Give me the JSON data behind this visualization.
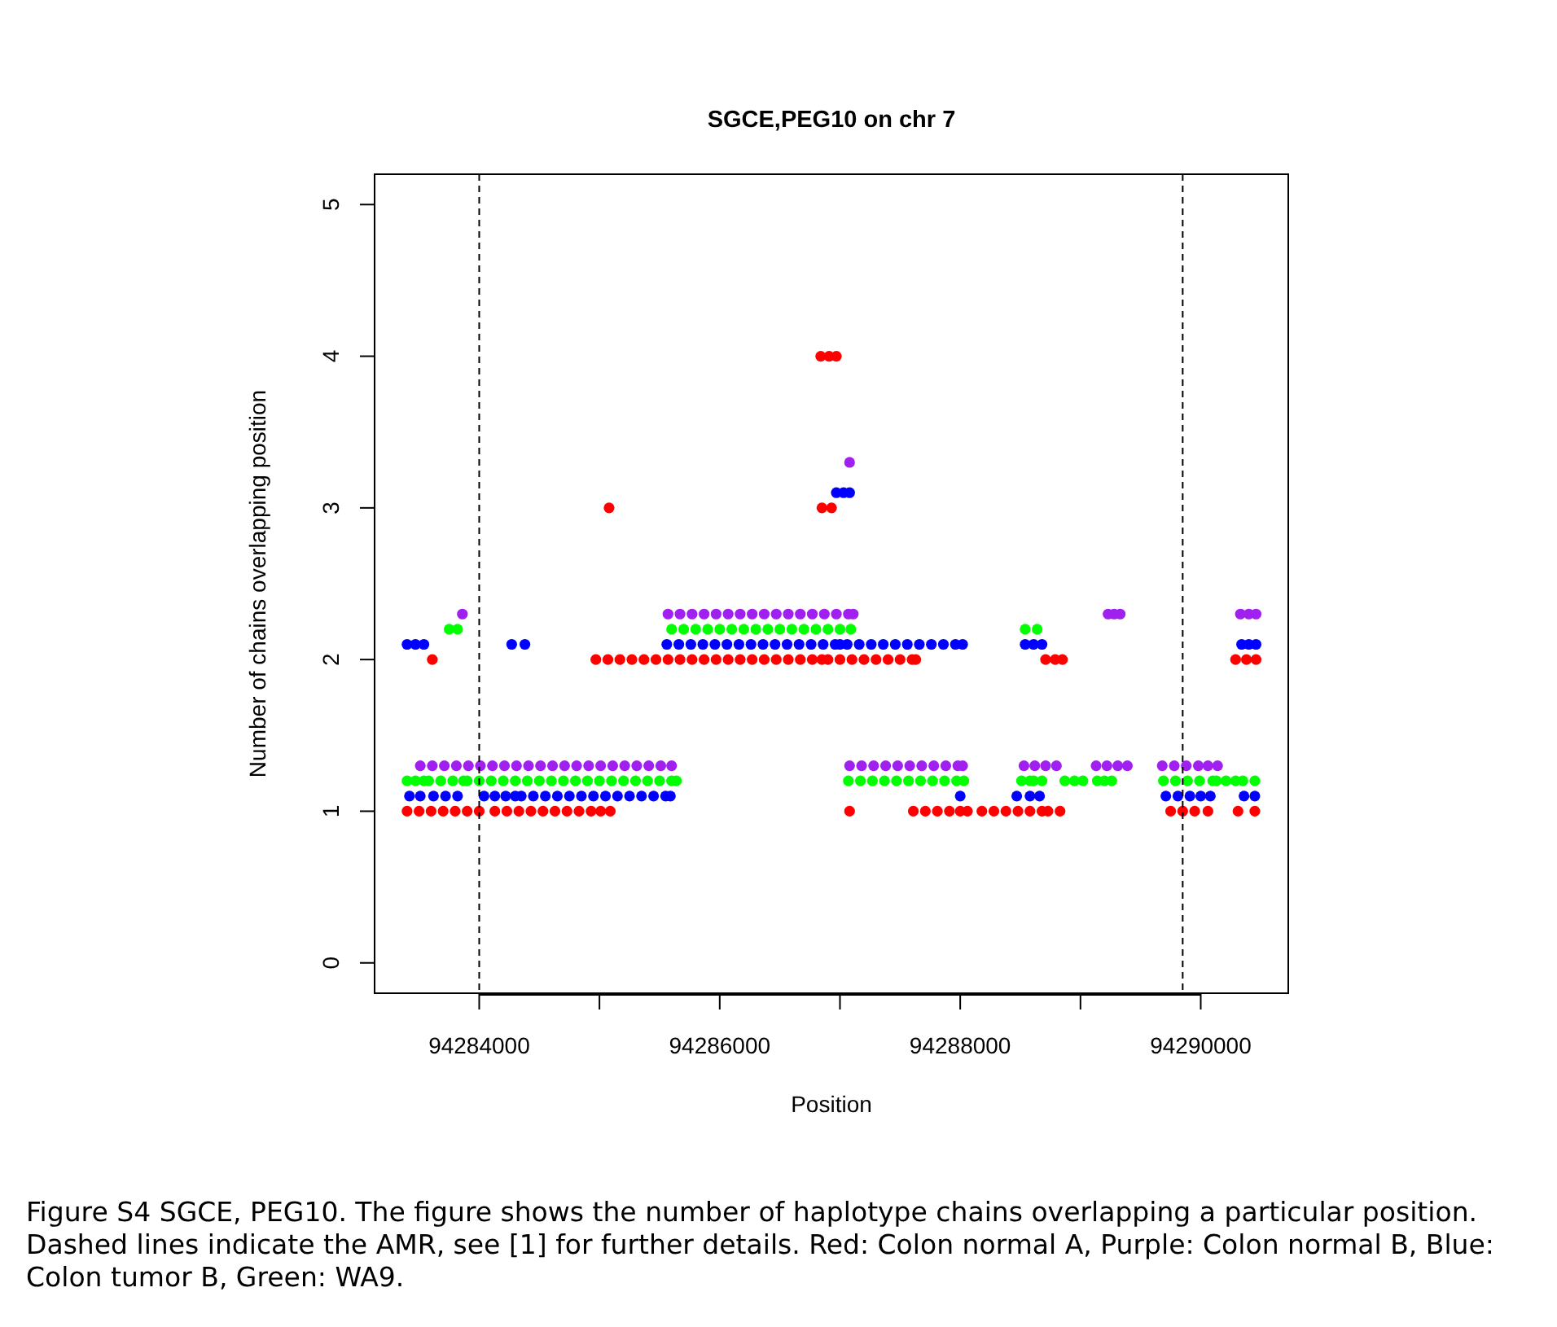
{
  "chart_data": {
    "type": "scatter",
    "title": "SGCE,PEG10 on chr 7",
    "xlabel": "Position",
    "ylabel": "Number of chains overlapping position",
    "xlim": [
      94283130,
      94290728
    ],
    "ylim": [
      -0.2,
      5.2
    ],
    "xticks": [
      94284000,
      {
        "value": 94285000,
        "label": null
      },
      94286000,
      {
        "value": 94287000,
        "label": null
      },
      94288000,
      {
        "value": 94289000,
        "label": null
      },
      94290000
    ],
    "yticks": [
      0,
      1,
      2,
      3,
      4,
      5
    ],
    "marker": "circle",
    "ref_lines": [
      {
        "axis": "x",
        "value": 94284000,
        "color": "#000000",
        "line_style": "dashed"
      },
      {
        "axis": "x",
        "value": 94289850,
        "color": "#000000",
        "line_style": "dashed"
      }
    ],
    "annotations": [
      "Figure S4 SGCE, PEG10. The figure shows the number of haplotype chains overlapping a particular position. Dashed lines indicate the AMR, see [1] for further details. Red: Colon normal A, Purple: Colon normal B, Blue: Colon tumor B, Green: WA9."
    ],
    "series": [
      {
        "color": "#ff0000",
        "x": [
          94283400,
          94283500,
          94283600,
          94283700,
          94283800,
          94283900,
          94284000,
          94284130,
          94284230,
          94284330,
          94284430,
          94284530,
          94284630,
          94284730,
          94284830,
          94284930,
          94285010,
          94285090,
          94287080,
          94287610,
          94287710,
          94287810,
          94287910,
          94288000,
          94288060,
          94288180,
          94288280,
          94288380,
          94288480,
          94288580,
          94288680,
          94288730,
          94288830,
          94289750,
          94289850,
          94289950,
          94290060,
          94290310,
          94290450,
          94283610,
          94284970,
          94285070,
          94285170,
          94285270,
          94285370,
          94285470,
          94285570,
          94285670,
          94285770,
          94285870,
          94285970,
          94286070,
          94286170,
          94286270,
          94286370,
          94286470,
          94286570,
          94286670,
          94286770,
          94286850,
          94286900,
          94287000,
          94287100,
          94287200,
          94287300,
          94287400,
          94287500,
          94287600,
          94287630,
          94288710,
          94288790,
          94288850,
          94290290,
          94290380,
          94290460,
          94285080,
          94286850,
          94286930,
          94286840,
          94286910,
          94286970
        ],
        "values": [
          1,
          1,
          1,
          1,
          1,
          1,
          1,
          1,
          1,
          1,
          1,
          1,
          1,
          1,
          1,
          1,
          1,
          1,
          1,
          1,
          1,
          1,
          1,
          1,
          1,
          1,
          1,
          1,
          1,
          1,
          1,
          1,
          1,
          1,
          1,
          1,
          1,
          1,
          1,
          2,
          2,
          2,
          2,
          2,
          2,
          2,
          2,
          2,
          2,
          2,
          2,
          2,
          2,
          2,
          2,
          2,
          2,
          2,
          2,
          2,
          2,
          2,
          2,
          2,
          2,
          2,
          2,
          2,
          2,
          2,
          2,
          2,
          2,
          2,
          2,
          3,
          3,
          3,
          4,
          4,
          4
        ]
      },
      {
        "color": "#0000ff",
        "x": [
          94283420,
          94283510,
          94283620,
          94283720,
          94283820,
          94284040,
          94284130,
          94284220,
          94284300,
          94284350,
          94284450,
          94284550,
          94284650,
          94284750,
          94284850,
          94284950,
          94285050,
          94285150,
          94285250,
          94285350,
          94285450,
          94285550,
          94285590,
          94288000,
          94288470,
          94288580,
          94288660,
          94289710,
          94289810,
          94289910,
          94290000,
          94290080,
          94290360,
          94290450,
          94283400,
          94283470,
          94283540,
          94284270,
          94284380,
          94285560,
          94285660,
          94285760,
          94285860,
          94285960,
          94286060,
          94286160,
          94286260,
          94286360,
          94286460,
          94286560,
          94286660,
          94286760,
          94286860,
          94286960,
          94287000,
          94287060,
          94287160,
          94287260,
          94287360,
          94287460,
          94287560,
          94287660,
          94287760,
          94287860,
          94287960,
          94288020,
          94288540,
          94288610,
          94288680,
          94290340,
          94290400,
          94290460,
          94286970,
          94287030,
          94287080
        ],
        "values": [
          1.1,
          1.1,
          1.1,
          1.1,
          1.1,
          1.1,
          1.1,
          1.1,
          1.1,
          1.1,
          1.1,
          1.1,
          1.1,
          1.1,
          1.1,
          1.1,
          1.1,
          1.1,
          1.1,
          1.1,
          1.1,
          1.1,
          1.1,
          1.1,
          1.1,
          1.1,
          1.1,
          1.1,
          1.1,
          1.1,
          1.1,
          1.1,
          1.1,
          1.1,
          2.1,
          2.1,
          2.1,
          2.1,
          2.1,
          2.1,
          2.1,
          2.1,
          2.1,
          2.1,
          2.1,
          2.1,
          2.1,
          2.1,
          2.1,
          2.1,
          2.1,
          2.1,
          2.1,
          2.1,
          2.1,
          2.1,
          2.1,
          2.1,
          2.1,
          2.1,
          2.1,
          2.1,
          2.1,
          2.1,
          2.1,
          2.1,
          2.1,
          2.1,
          2.1,
          2.1,
          2.1,
          2.1,
          3.1,
          3.1,
          3.1
        ]
      },
      {
        "color": "#00ff00",
        "x": [
          94283400,
          94283470,
          94283540,
          94283580,
          94283680,
          94283780,
          94283870,
          94283900,
          94284000,
          94284100,
          94284200,
          94284300,
          94284400,
          94284500,
          94284600,
          94284700,
          94284800,
          94284900,
          94285000,
          94285100,
          94285200,
          94285300,
          94285400,
          94285500,
          94285600,
          94285640,
          94287070,
          94287170,
          94287270,
          94287370,
          94287470,
          94287570,
          94287670,
          94287770,
          94287870,
          94287970,
          94288030,
          94288510,
          94288580,
          94288610,
          94288680,
          94288870,
          94288950,
          94289020,
          94289140,
          94289200,
          94289260,
          94289690,
          94289790,
          94289890,
          94289990,
          94290100,
          94290130,
          94290210,
          94290290,
          94290350,
          94290450,
          94283750,
          94283820,
          94285600,
          94285700,
          94285800,
          94285900,
          94286000,
          94286100,
          94286200,
          94286300,
          94286400,
          94286500,
          94286600,
          94286700,
          94286800,
          94286900,
          94287000,
          94287090,
          94288540,
          94288640
        ],
        "values": [
          1.2,
          1.2,
          1.2,
          1.2,
          1.2,
          1.2,
          1.2,
          1.2,
          1.2,
          1.2,
          1.2,
          1.2,
          1.2,
          1.2,
          1.2,
          1.2,
          1.2,
          1.2,
          1.2,
          1.2,
          1.2,
          1.2,
          1.2,
          1.2,
          1.2,
          1.2,
          1.2,
          1.2,
          1.2,
          1.2,
          1.2,
          1.2,
          1.2,
          1.2,
          1.2,
          1.2,
          1.2,
          1.2,
          1.2,
          1.2,
          1.2,
          1.2,
          1.2,
          1.2,
          1.2,
          1.2,
          1.2,
          1.2,
          1.2,
          1.2,
          1.2,
          1.2,
          1.2,
          1.2,
          1.2,
          1.2,
          1.2,
          2.2,
          2.2,
          2.2,
          2.2,
          2.2,
          2.2,
          2.2,
          2.2,
          2.2,
          2.2,
          2.2,
          2.2,
          2.2,
          2.2,
          2.2,
          2.2,
          2.2,
          2.2,
          2.2,
          2.2
        ]
      },
      {
        "color": "#a020f0",
        "x": [
          94283510,
          94283610,
          94283710,
          94283810,
          94283910,
          94284010,
          94284110,
          94284210,
          94284310,
          94284410,
          94284510,
          94284610,
          94284710,
          94284810,
          94284910,
          94285010,
          94285110,
          94285210,
          94285310,
          94285410,
          94285510,
          94285600,
          94287080,
          94287180,
          94287280,
          94287380,
          94287480,
          94287580,
          94287680,
          94287780,
          94287880,
          94287980,
          94288020,
          94288530,
          94288620,
          94288710,
          94288800,
          94289130,
          94289220,
          94289310,
          94289390,
          94289680,
          94289780,
          94289880,
          94289980,
          94290060,
          94290140,
          94283860,
          94285570,
          94285670,
          94285770,
          94285870,
          94285970,
          94286070,
          94286170,
          94286270,
          94286370,
          94286470,
          94286570,
          94286670,
          94286770,
          94286870,
          94286970,
          94287070,
          94287110,
          94289230,
          94289280,
          94289330,
          94290330,
          94290400,
          94290460,
          94287080
        ],
        "values": [
          1.3,
          1.3,
          1.3,
          1.3,
          1.3,
          1.3,
          1.3,
          1.3,
          1.3,
          1.3,
          1.3,
          1.3,
          1.3,
          1.3,
          1.3,
          1.3,
          1.3,
          1.3,
          1.3,
          1.3,
          1.3,
          1.3,
          1.3,
          1.3,
          1.3,
          1.3,
          1.3,
          1.3,
          1.3,
          1.3,
          1.3,
          1.3,
          1.3,
          1.3,
          1.3,
          1.3,
          1.3,
          1.3,
          1.3,
          1.3,
          1.3,
          1.3,
          1.3,
          1.3,
          1.3,
          1.3,
          1.3,
          2.3,
          2.3,
          2.3,
          2.3,
          2.3,
          2.3,
          2.3,
          2.3,
          2.3,
          2.3,
          2.3,
          2.3,
          2.3,
          2.3,
          2.3,
          2.3,
          2.3,
          2.3,
          2.3,
          2.3,
          2.3,
          2.3,
          2.3,
          2.3,
          3.3
        ]
      }
    ]
  }
}
